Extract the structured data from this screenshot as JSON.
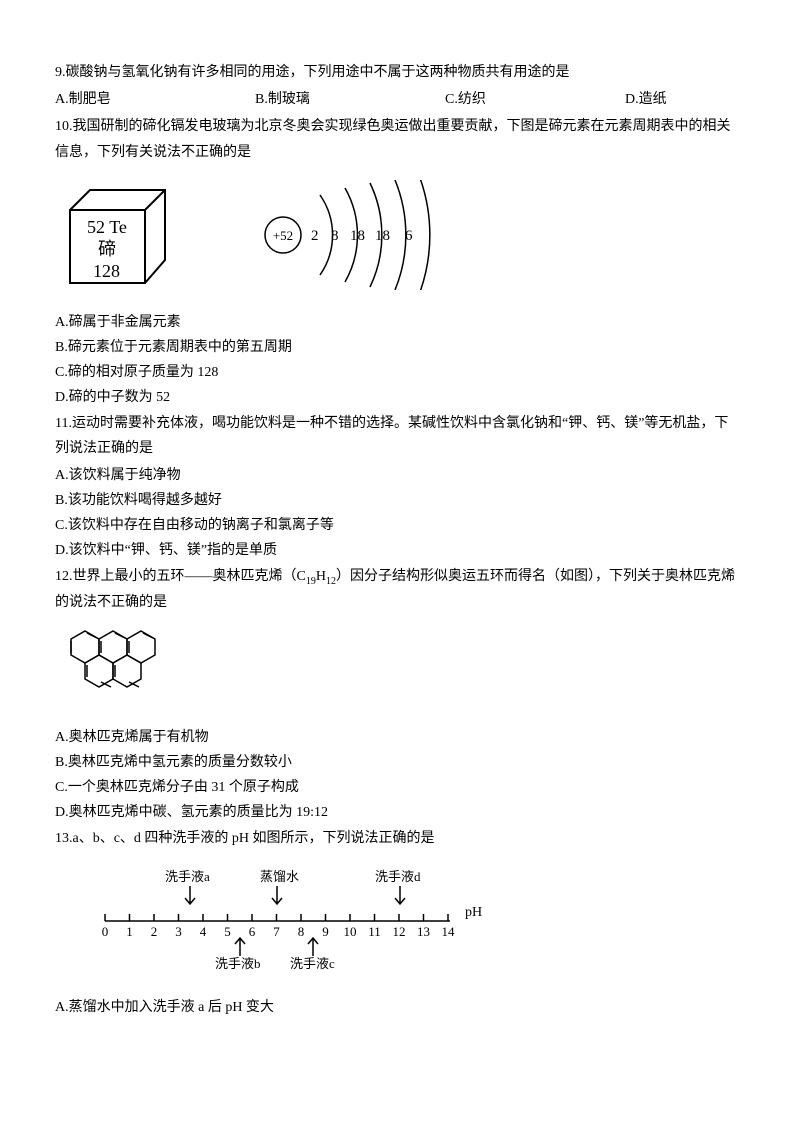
{
  "q9": {
    "stem": "9.碳酸钠与氢氧化钠有许多相同的用途，下列用途中不属于这两种物质共有用途的是",
    "a": "A.制肥皂",
    "b": "B.制玻璃",
    "c": "C.纺织",
    "d": "D.造纸"
  },
  "q10": {
    "stem": "10.我国研制的碲化镉发电玻璃为北京冬奥会实现绿色奥运做出重要贡献，下图是碲元素在元素周期表中的相关信息，下列有关说法不正确的是",
    "cube_num": "52",
    "cube_sym": "Te",
    "cube_cn": "碲",
    "cube_mass": "128",
    "nucleus": "+52",
    "sh1": "2",
    "sh2": "8",
    "sh3": "18",
    "sh4": "18",
    "sh5": "6",
    "a": "A.碲属于非金属元素",
    "b": "B.碲元素位于元素周期表中的第五周期",
    "c": "C.碲的相对原子质量为 128",
    "d": "D.碲的中子数为 52"
  },
  "q11": {
    "stem": "11.运动时需要补充体液，喝功能饮料是一种不错的选择。某碱性饮料中含氯化钠和“钾、钙、镁”等无机盐，下列说法正确的是",
    "a": "A.该饮料属于纯净物",
    "b": "B.该功能饮料喝得越多越好",
    "c": "C.该饮料中存在自由移动的钠离子和氯离子等",
    "d": "D.该饮料中“钾、钙、镁”指的是单质"
  },
  "q12": {
    "stem1": "12.世界上最小的五环——奥林匹克烯（C",
    "sub1": "19",
    "stem2": "H",
    "sub2": "12",
    "stem3": "）因分子结构形似奥运五环而得名（如图），下列关于奥林匹克烯的说法不正确的是",
    "a": "A.奥林匹克烯属于有机物",
    "b": "B.奥林匹克烯中氢元素的质量分数较小",
    "c": "C.一个奥林匹克烯分子由 31 个原子构成",
    "d": "D.奥林匹克烯中碳、氢元素的质量比为 19:12"
  },
  "q13": {
    "stem": "13.a、b、c、d 四种洗手液的 pH 如图所示，下列说法正确的是",
    "label_a": "洗手液a",
    "label_dist": "蒸馏水",
    "label_d": "洗手液d",
    "label_b": "洗手液b",
    "label_c": "洗手液c",
    "ph": "pH",
    "ticks": [
      "0",
      "1",
      "2",
      "3",
      "4",
      "5",
      "6",
      "7",
      "8",
      "9",
      "10",
      "11",
      "12",
      "13",
      "14"
    ],
    "a": "A.蒸馏水中加入洗手液 a 后 pH 变大"
  },
  "style": {
    "stroke": "#000000",
    "bg": "#ffffff",
    "font_main": 14,
    "font_svg": 15
  }
}
